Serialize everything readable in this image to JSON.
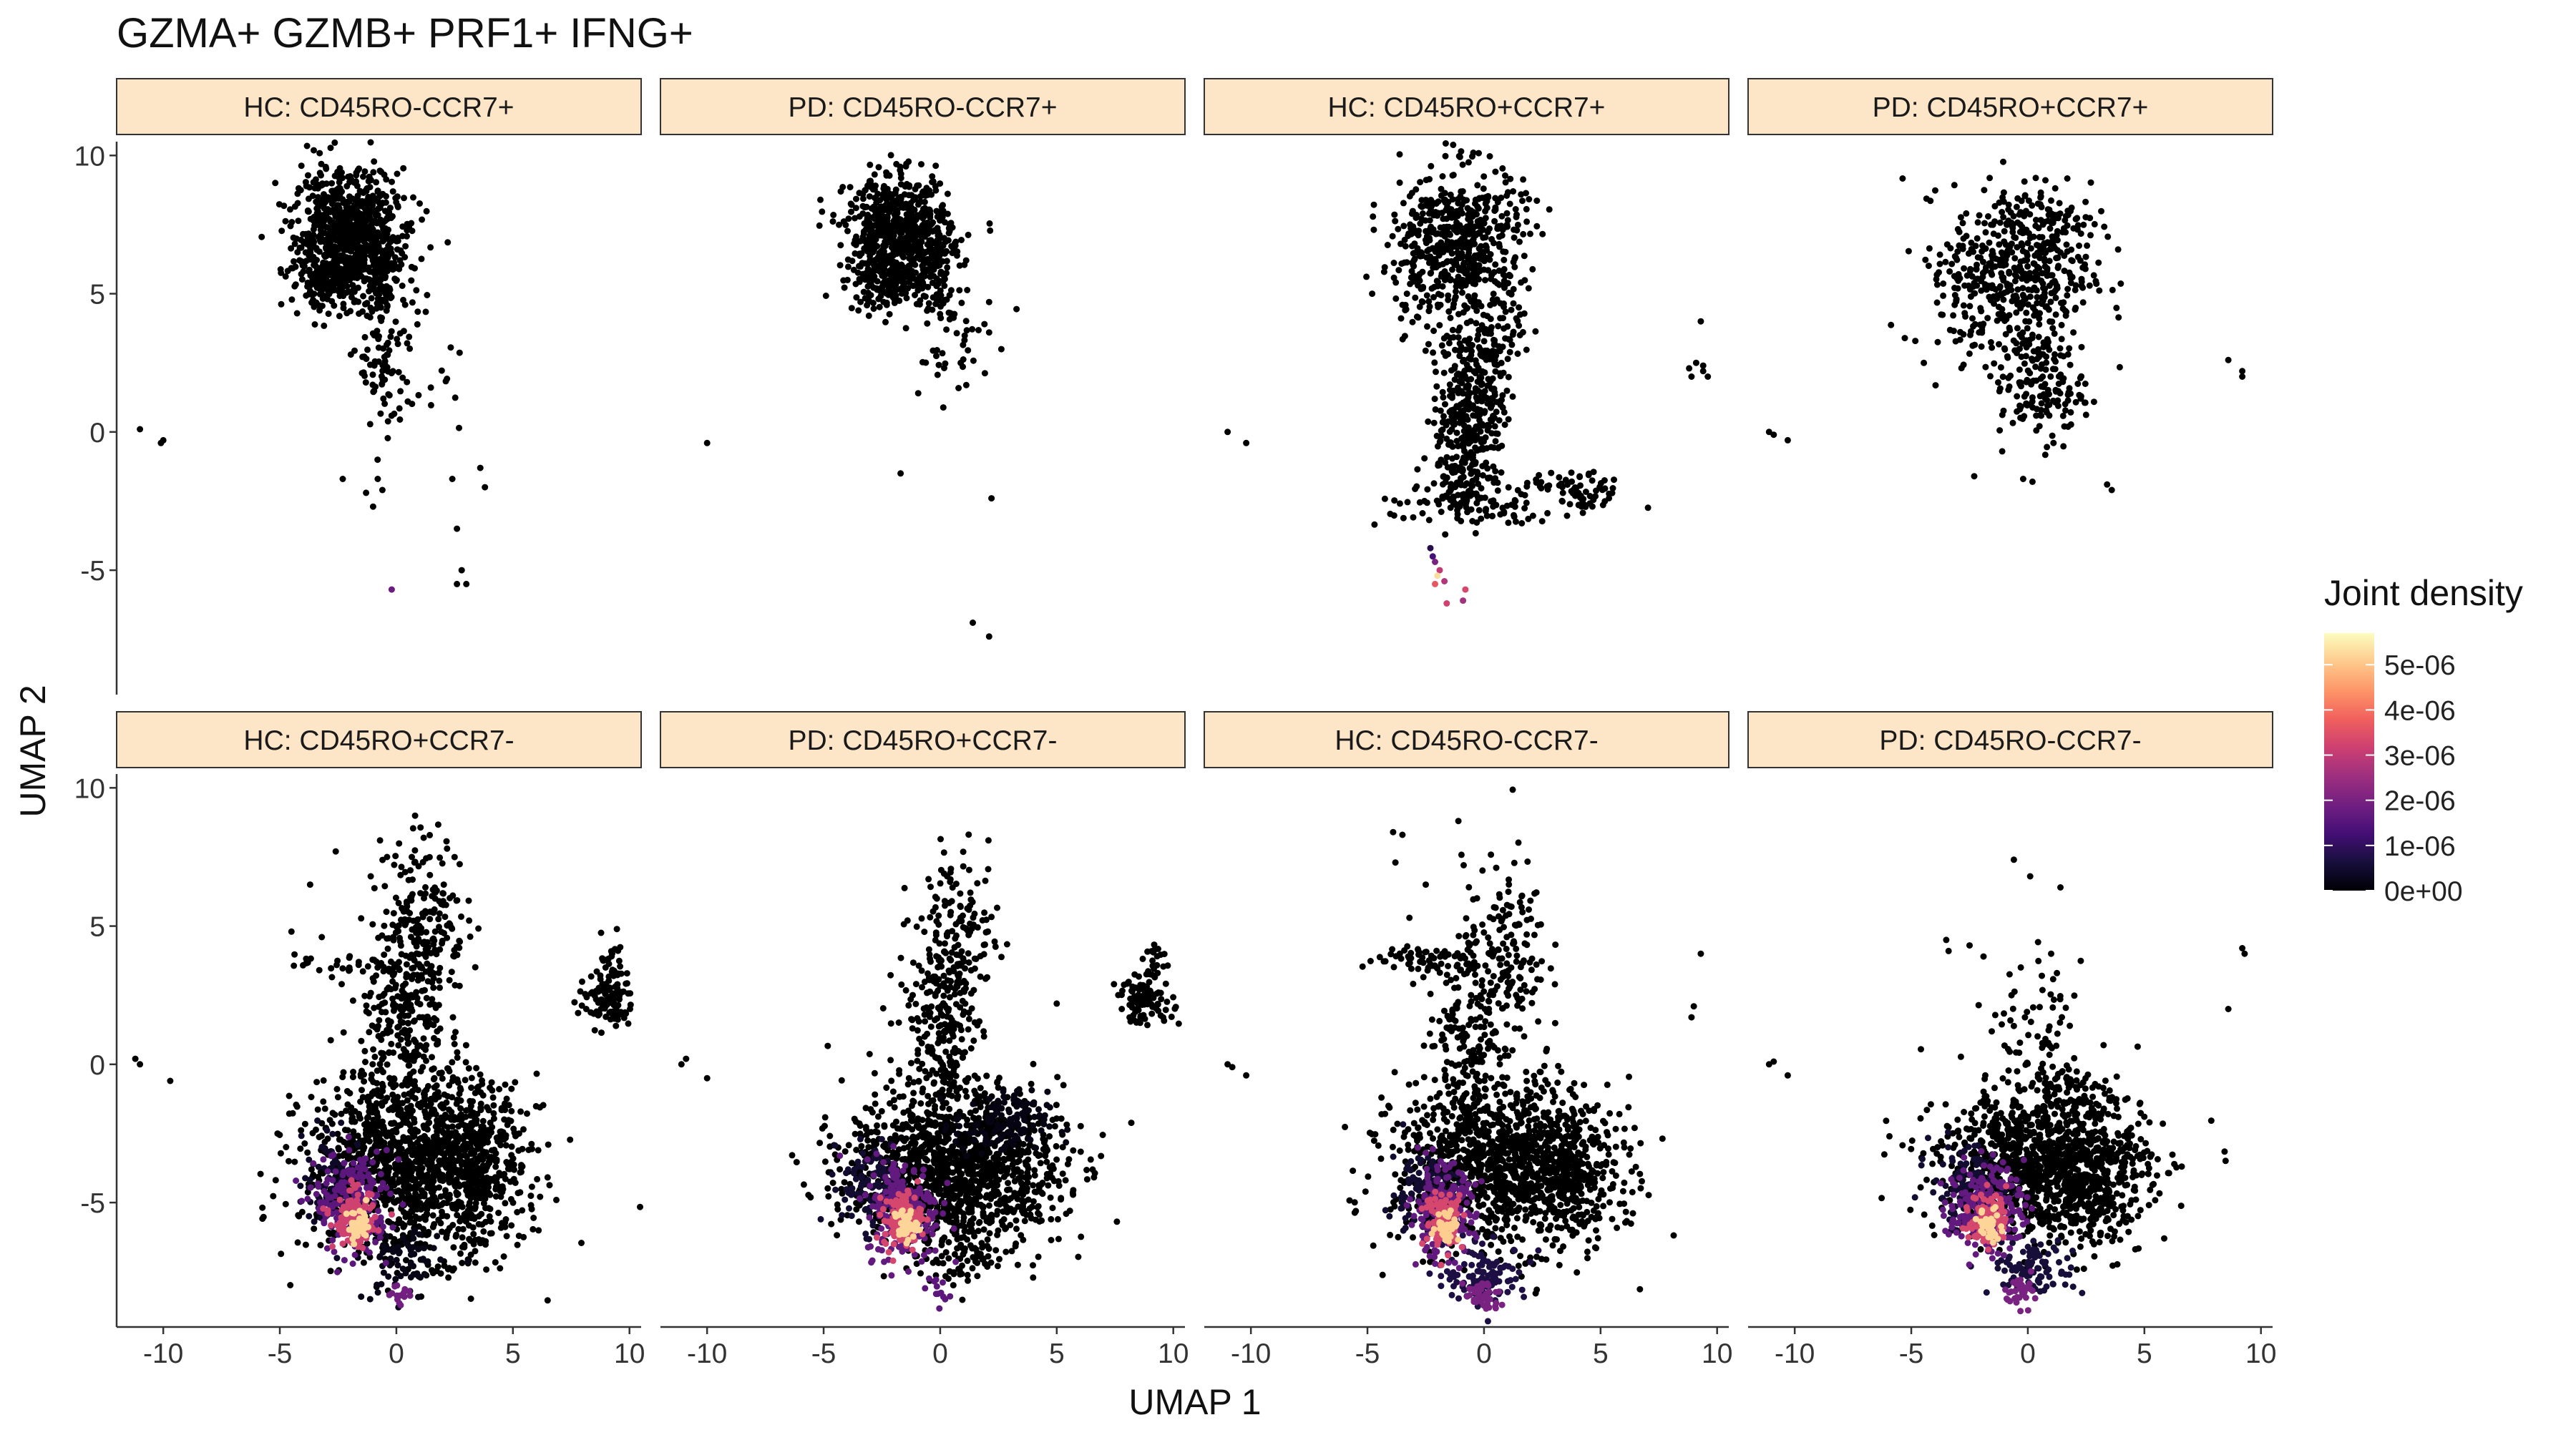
{
  "chart_data": {
    "type": "scatter",
    "title": "GZMA+ GZMB+ PRF1+ IFNG+",
    "xlabel": "UMAP 1",
    "ylabel": "UMAP 2",
    "xlim": [
      -12,
      10.5
    ],
    "ylim": [
      -9.5,
      10.5
    ],
    "x_ticks": [
      -10,
      -5,
      0,
      5,
      10
    ],
    "y_ticks": [
      -5,
      0,
      5,
      10
    ],
    "x_tick_labels": [
      "-10",
      "-5",
      "0",
      "5",
      "10"
    ],
    "y_tick_labels": [
      "-5",
      "0",
      "5",
      "10"
    ],
    "grid": false,
    "facet_layout": "2 rows x 4 columns",
    "strip_fill": "#fde5c8",
    "legend": {
      "title": "Joint density",
      "placement": "right",
      "range": [
        0,
        5.7e-06
      ],
      "breaks": [
        0,
        1e-06,
        2e-06,
        3e-06,
        4e-06,
        5e-06
      ],
      "labels": [
        "0e+00",
        "1e-06",
        "2e-06",
        "3e-06",
        "4e-06",
        "5e-06"
      ],
      "colormap": [
        "#000004",
        "#180f3d",
        "#440f76",
        "#721f81",
        "#9e2f7f",
        "#cd4071",
        "#f1605d",
        "#fd9668",
        "#feca8d",
        "#fcfdbf"
      ]
    },
    "panels": [
      {
        "label": "HC: CD45RO-CCR7+",
        "density_points": [
          {
            "x": -0.2,
            "y": -5.7,
            "d": 1.8e-06
          }
        ],
        "points": [
          [
            -11.0,
            0.1
          ],
          [
            -10.0,
            -0.3
          ],
          [
            -10.1,
            -0.4
          ],
          [
            -2.3,
            -1.7
          ],
          [
            -1.3,
            -2.2
          ],
          [
            -0.8,
            -1.7
          ],
          [
            -0.6,
            -2.1
          ],
          [
            -1.0,
            -2.7
          ],
          [
            2.4,
            -1.7
          ],
          [
            3.6,
            -1.3
          ],
          [
            3.8,
            -2.0
          ],
          [
            2.6,
            -3.5
          ],
          [
            2.8,
            -5.0
          ],
          [
            2.6,
            -5.5
          ],
          [
            3.0,
            -5.5
          ]
        ],
        "clusters": [
          {
            "cx": -2.2,
            "cy": 7.2,
            "sx": 1.1,
            "sy": 1.1,
            "n": 700,
            "d": 0
          },
          {
            "cx": -2.8,
            "cy": 5.5,
            "sx": 0.9,
            "sy": 0.5,
            "n": 160,
            "d": 0
          },
          {
            "cx": -0.6,
            "cy": 6.4,
            "sx": 0.5,
            "sy": 1.0,
            "n": 120,
            "d": 0
          },
          {
            "cx": -0.6,
            "cy": 2.7,
            "sx": 0.5,
            "sy": 1.6,
            "n": 90,
            "d": 0
          },
          {
            "cx": 0.5,
            "cy": 4.8,
            "sx": 1.1,
            "sy": 1.8,
            "n": 30,
            "d": 0
          },
          {
            "cx": 1.6,
            "cy": 1.6,
            "sx": 0.6,
            "sy": 0.6,
            "n": 12,
            "d": 0
          }
        ]
      },
      {
        "label": "PD: CD45RO-CCR7+",
        "density_points": [],
        "points": [
          [
            -10.0,
            -0.4
          ],
          [
            -1.7,
            -1.5
          ],
          [
            2.1,
            4.7
          ],
          [
            1.9,
            3.9
          ],
          [
            2.1,
            3.6
          ],
          [
            2.2,
            -2.4
          ],
          [
            1.4,
            -6.9
          ],
          [
            2.1,
            -7.4
          ]
        ],
        "clusters": [
          {
            "cx": -1.8,
            "cy": 7.2,
            "sx": 1.1,
            "sy": 1.0,
            "n": 620,
            "d": 0
          },
          {
            "cx": -2.4,
            "cy": 5.4,
            "sx": 0.8,
            "sy": 0.5,
            "n": 130,
            "d": 0
          },
          {
            "cx": -0.2,
            "cy": 6.3,
            "sx": 0.5,
            "sy": 1.0,
            "n": 110,
            "d": 0
          },
          {
            "cx": 0.3,
            "cy": 3.0,
            "sx": 0.9,
            "sy": 1.2,
            "n": 40,
            "d": 0
          }
        ]
      },
      {
        "label": "HC: CD45RO+CCR7+",
        "density_points": [
          {
            "x": -2.2,
            "y": -4.5,
            "d": 1.3e-06
          },
          {
            "x": -2.1,
            "y": -4.7,
            "d": 2e-06
          },
          {
            "x": -1.9,
            "y": -5.0,
            "d": 3e-06
          },
          {
            "x": -2.0,
            "y": -5.2,
            "d": 5.3e-06
          },
          {
            "x": -2.1,
            "y": -5.5,
            "d": 3.6e-06
          },
          {
            "x": -1.7,
            "y": -5.4,
            "d": 2.8e-06
          },
          {
            "x": -1.6,
            "y": -6.2,
            "d": 3.2e-06
          },
          {
            "x": -0.8,
            "y": -5.7,
            "d": 3.3e-06
          },
          {
            "x": -0.9,
            "y": -6.1,
            "d": 2.6e-06
          },
          {
            "x": -2.3,
            "y": -4.2,
            "d": 8e-07
          }
        ],
        "points": [
          [
            -11.0,
            0.0
          ],
          [
            -10.2,
            -0.4
          ],
          [
            -4.8,
            5.0
          ],
          [
            8.8,
            2.3
          ],
          [
            9.1,
            2.5
          ],
          [
            9.4,
            2.2
          ],
          [
            9.4,
            2.4
          ],
          [
            8.9,
            2.0
          ],
          [
            9.6,
            2.0
          ],
          [
            9.3,
            4.0
          ]
        ],
        "clusters": [
          {
            "cx": -0.8,
            "cy": 6.8,
            "sx": 1.3,
            "sy": 1.4,
            "n": 480,
            "d": 0
          },
          {
            "cx": -2.8,
            "cy": 6.2,
            "sx": 0.8,
            "sy": 1.5,
            "n": 100,
            "d": 0
          },
          {
            "cx": -0.5,
            "cy": 1.3,
            "sx": 0.7,
            "sy": 1.4,
            "n": 320,
            "d": 0
          },
          {
            "cx": -0.8,
            "cy": -1.5,
            "sx": 0.7,
            "sy": 0.8,
            "n": 100,
            "d": 0
          },
          {
            "cx": -1.2,
            "cy": -2.5,
            "sx": 1.6,
            "sy": 0.5,
            "n": 70,
            "d": 0
          },
          {
            "cx": 4.0,
            "cy": -2.2,
            "sx": 1.0,
            "sy": 0.4,
            "n": 70,
            "d": 0
          },
          {
            "cx": 0.6,
            "cy": 3.5,
            "sx": 0.8,
            "sy": 0.9,
            "n": 50,
            "d": 0
          },
          {
            "cx": 1.2,
            "cy": -2.8,
            "sx": 0.6,
            "sy": 0.4,
            "n": 20,
            "d": 0
          }
        ]
      },
      {
        "label": "PD: CD45RO+CCR7+",
        "density_points": [],
        "points": [
          [
            -11.1,
            0.0
          ],
          [
            -10.9,
            -0.1
          ],
          [
            -10.3,
            -0.3
          ],
          [
            -2.3,
            -1.6
          ],
          [
            -0.2,
            -1.7
          ],
          [
            0.2,
            -1.8
          ],
          [
            -1.1,
            -0.7
          ],
          [
            3.4,
            -1.9
          ],
          [
            3.6,
            -2.1
          ],
          [
            8.6,
            2.6
          ],
          [
            9.2,
            2.0
          ],
          [
            9.2,
            2.2
          ]
        ],
        "clusters": [
          {
            "cx": -0.3,
            "cy": 5.8,
            "sx": 1.5,
            "sy": 1.6,
            "n": 420,
            "d": 0
          },
          {
            "cx": -2.8,
            "cy": 5.6,
            "sx": 1.1,
            "sy": 1.3,
            "n": 80,
            "d": 0
          },
          {
            "cx": 0.6,
            "cy": 1.7,
            "sx": 0.9,
            "sy": 1.0,
            "n": 160,
            "d": 0
          },
          {
            "cx": 0.9,
            "cy": 7.4,
            "sx": 0.9,
            "sy": 0.8,
            "n": 60,
            "d": 0
          }
        ]
      },
      {
        "label": "HC: CD45RO+CCR7-",
        "density_points": [],
        "points": [
          [
            -11.2,
            0.2
          ],
          [
            -11.0,
            0.0
          ],
          [
            -9.7,
            -0.6
          ],
          [
            -4.5,
            4.8
          ],
          [
            -3.7,
            6.5
          ],
          [
            -2.6,
            7.7
          ],
          [
            -1.1,
            6.8
          ],
          [
            -0.7,
            8.1
          ],
          [
            -0.4,
            7.5
          ],
          [
            -3.2,
            4.6
          ]
        ],
        "clusters": [
          {
            "cx": 9.0,
            "cy": 2.3,
            "sx": 0.6,
            "sy": 0.5,
            "n": 110,
            "d": 0
          },
          {
            "cx": 9.3,
            "cy": 3.7,
            "sx": 0.25,
            "sy": 0.5,
            "n": 25,
            "d": 0
          },
          {
            "cx": -2.2,
            "cy": 3.6,
            "sx": 1.1,
            "sy": 0.2,
            "n": 30,
            "d": 0
          },
          {
            "cx": 1.2,
            "cy": 5.3,
            "sx": 0.9,
            "sy": 1.5,
            "n": 200,
            "d": 0
          },
          {
            "cx": 0.3,
            "cy": 1.3,
            "sx": 0.9,
            "sy": 1.8,
            "n": 260,
            "d": 0
          },
          {
            "cx": 0.6,
            "cy": -3.7,
            "sx": 2.3,
            "sy": 1.6,
            "n": 1300,
            "d": 0
          },
          {
            "cx": 3.5,
            "cy": -3.5,
            "sx": 0.9,
            "sy": 1.5,
            "n": 260,
            "d": 0
          },
          {
            "cx": -2.6,
            "cy": -4.3,
            "sx": 0.7,
            "sy": 0.8,
            "n": 100,
            "d": 4e-07
          },
          {
            "cx": -1.9,
            "cy": -5.0,
            "sx": 0.8,
            "sy": 0.9,
            "n": 200,
            "d": 1.6e-06
          },
          {
            "cx": -1.8,
            "cy": -5.6,
            "sx": 0.45,
            "sy": 0.5,
            "n": 120,
            "d": 3.2e-06
          },
          {
            "cx": -1.6,
            "cy": -5.9,
            "sx": 0.25,
            "sy": 0.3,
            "n": 45,
            "d": 5.2e-06
          },
          {
            "cx": 0.2,
            "cy": -7.2,
            "sx": 0.8,
            "sy": 0.7,
            "n": 70,
            "d": 2e-07
          },
          {
            "cx": 0.0,
            "cy": -8.3,
            "sx": 0.3,
            "sy": 0.25,
            "n": 14,
            "d": 1.9e-06
          }
        ]
      },
      {
        "label": "PD: CD45RO+CCR7-",
        "density_points": [],
        "points": [
          [
            -11.1,
            0.0
          ],
          [
            -10.9,
            0.2
          ],
          [
            -10.0,
            -0.5
          ],
          [
            -1.4,
            5.2
          ],
          [
            -0.5,
            6.7
          ],
          [
            0.3,
            6.8
          ]
        ],
        "clusters": [
          {
            "cx": 8.8,
            "cy": 2.3,
            "sx": 0.6,
            "sy": 0.4,
            "n": 100,
            "d": 0
          },
          {
            "cx": 9.2,
            "cy": 3.7,
            "sx": 0.25,
            "sy": 0.4,
            "n": 20,
            "d": 0
          },
          {
            "cx": 0.9,
            "cy": 4.7,
            "sx": 0.8,
            "sy": 1.4,
            "n": 140,
            "d": 0
          },
          {
            "cx": 0.0,
            "cy": 1.2,
            "sx": 0.9,
            "sy": 1.6,
            "n": 220,
            "d": 0
          },
          {
            "cx": 0.6,
            "cy": -3.8,
            "sx": 2.3,
            "sy": 1.4,
            "n": 1300,
            "d": 0
          },
          {
            "cx": 2.6,
            "cy": -2.2,
            "sx": 1.0,
            "sy": 0.6,
            "n": 120,
            "d": 1.5e-07
          },
          {
            "cx": -2.8,
            "cy": -4.4,
            "sx": 0.7,
            "sy": 0.8,
            "n": 110,
            "d": 5e-07
          },
          {
            "cx": -1.6,
            "cy": -5.2,
            "sx": 0.8,
            "sy": 0.9,
            "n": 220,
            "d": 1.7e-06
          },
          {
            "cx": -1.6,
            "cy": -5.6,
            "sx": 0.4,
            "sy": 0.5,
            "n": 120,
            "d": 3.3e-06
          },
          {
            "cx": -1.5,
            "cy": -5.8,
            "sx": 0.25,
            "sy": 0.3,
            "n": 45,
            "d": 5.2e-06
          },
          {
            "cx": -0.2,
            "cy": -8.2,
            "sx": 0.3,
            "sy": 0.3,
            "n": 14,
            "d": 1.6e-06
          },
          {
            "cx": 0.8,
            "cy": -7.0,
            "sx": 0.9,
            "sy": 0.6,
            "n": 60,
            "d": 0
          }
        ]
      },
      {
        "label": "HC: CD45RO-CCR7-",
        "density_points": [],
        "points": [
          [
            -11.0,
            0.0
          ],
          [
            -10.8,
            -0.1
          ],
          [
            -10.2,
            -0.4
          ],
          [
            -3.9,
            8.4
          ],
          [
            -3.5,
            8.3
          ],
          [
            -1.1,
            8.8
          ],
          [
            -3.8,
            7.3
          ],
          [
            -2.5,
            6.5
          ],
          [
            -3.2,
            5.3
          ],
          [
            9.0,
            2.1
          ],
          [
            8.9,
            1.7
          ],
          [
            9.3,
            4.0
          ]
        ],
        "clusters": [
          {
            "cx": -2.8,
            "cy": 3.8,
            "sx": 1.2,
            "sy": 0.3,
            "n": 60,
            "d": 0
          },
          {
            "cx": 0.9,
            "cy": 4.2,
            "sx": 0.9,
            "sy": 1.6,
            "n": 150,
            "d": 0
          },
          {
            "cx": -0.6,
            "cy": 1.4,
            "sx": 0.9,
            "sy": 1.5,
            "n": 160,
            "d": 0
          },
          {
            "cx": 0.8,
            "cy": -3.6,
            "sx": 2.3,
            "sy": 1.5,
            "n": 1200,
            "d": 0
          },
          {
            "cx": 3.8,
            "cy": -4.0,
            "sx": 0.9,
            "sy": 1.2,
            "n": 200,
            "d": 0
          },
          {
            "cx": -2.6,
            "cy": -4.6,
            "sx": 0.7,
            "sy": 0.8,
            "n": 100,
            "d": 5e-07
          },
          {
            "cx": -1.8,
            "cy": -5.3,
            "sx": 0.7,
            "sy": 0.8,
            "n": 200,
            "d": 1.7e-06
          },
          {
            "cx": -1.7,
            "cy": -5.6,
            "sx": 0.4,
            "sy": 0.5,
            "n": 110,
            "d": 3.3e-06
          },
          {
            "cx": -1.6,
            "cy": -5.8,
            "sx": 0.25,
            "sy": 0.3,
            "n": 40,
            "d": 5.1e-06
          },
          {
            "cx": 0.1,
            "cy": -7.6,
            "sx": 0.9,
            "sy": 0.5,
            "n": 110,
            "d": 7e-07
          },
          {
            "cx": -0.1,
            "cy": -8.4,
            "sx": 0.4,
            "sy": 0.3,
            "n": 40,
            "d": 2e-06
          }
        ]
      },
      {
        "label": "PD: CD45RO-CCR7-",
        "density_points": [],
        "points": [
          [
            -11.1,
            0.0
          ],
          [
            -10.9,
            0.1
          ],
          [
            -10.3,
            -0.4
          ],
          [
            -3.5,
            4.5
          ],
          [
            -3.4,
            4.1
          ],
          [
            -2.5,
            4.3
          ],
          [
            -1.9,
            3.9
          ],
          [
            -0.6,
            7.4
          ],
          [
            0.1,
            6.8
          ],
          [
            1.4,
            6.4
          ],
          [
            1.0,
            4.0
          ],
          [
            0.6,
            3.2
          ],
          [
            -0.7,
            2.5
          ],
          [
            8.6,
            2.0
          ],
          [
            9.3,
            4.0
          ],
          [
            9.2,
            4.2
          ]
        ],
        "clusters": [
          {
            "cx": 0.6,
            "cy": 1.0,
            "sx": 0.9,
            "sy": 1.3,
            "n": 70,
            "d": 0
          },
          {
            "cx": 0.6,
            "cy": -3.6,
            "sx": 2.2,
            "sy": 1.3,
            "n": 1100,
            "d": 0
          },
          {
            "cx": 2.8,
            "cy": -4.5,
            "sx": 1.0,
            "sy": 1.2,
            "n": 200,
            "d": 0
          },
          {
            "cx": 1.8,
            "cy": -1.0,
            "sx": 0.9,
            "sy": 0.4,
            "n": 60,
            "d": 0
          },
          {
            "cx": -2.6,
            "cy": -4.5,
            "sx": 0.8,
            "sy": 0.8,
            "n": 120,
            "d": 5e-07
          },
          {
            "cx": -1.8,
            "cy": -5.2,
            "sx": 0.8,
            "sy": 0.8,
            "n": 200,
            "d": 1.7e-06
          },
          {
            "cx": -1.7,
            "cy": -5.6,
            "sx": 0.4,
            "sy": 0.5,
            "n": 110,
            "d": 3.3e-06
          },
          {
            "cx": -1.6,
            "cy": -5.8,
            "sx": 0.25,
            "sy": 0.3,
            "n": 40,
            "d": 5.2e-06
          },
          {
            "cx": 0.2,
            "cy": -7.4,
            "sx": 0.9,
            "sy": 0.5,
            "n": 100,
            "d": 6e-07
          },
          {
            "cx": -0.2,
            "cy": -8.2,
            "sx": 0.4,
            "sy": 0.3,
            "n": 35,
            "d": 2e-06
          }
        ]
      }
    ]
  }
}
